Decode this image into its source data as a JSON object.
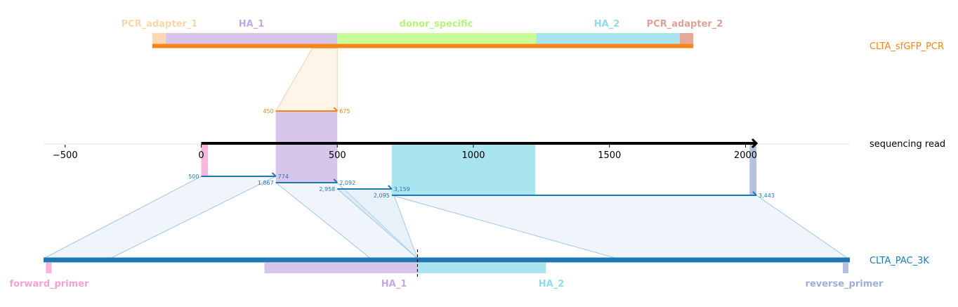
{
  "chart_data": {
    "type": "alignment-map",
    "colors": {
      "PCR_adapter_1": "#fcd9b3",
      "HA_1": "#d8c6ea",
      "donor_specific": "#c9fd98",
      "HA_2": "#a9e5ef",
      "PCR_adapter_2": "#e4a898",
      "forward_primer": "#f7b6de",
      "reverse_primer": "#b4c2de",
      "template_track": "#f58518",
      "plasmid_track": "#1f77b4",
      "read_axis": "#000000",
      "link_fill": "#dbe9f4",
      "link_stroke": "#9ecae1",
      "label_forward_primer": "#f7a1d2",
      "label_HA_1": "#c5a8e2",
      "label_donor_specific": "#b5f47a",
      "label_HA_2": "#8fdcea",
      "label_PCR_adapter_1": "#fdd5a8",
      "label_PCR_adapter_2": "#dca195",
      "label_reverse_primer": "#9bb0d4"
    },
    "tracks": {
      "top": {
        "name": "CLTA_sfGFP_PCR",
        "features": [
          {
            "name": "PCR_adapter_1",
            "start": -180,
            "end": -130
          },
          {
            "name": "HA_1",
            "start": -130,
            "end": 500
          },
          {
            "name": "donor_specific",
            "start": 500,
            "end": 1230
          },
          {
            "name": "HA_2",
            "start": 1230,
            "end": 1758
          },
          {
            "name": "PCR_adapter_2",
            "start": 1758,
            "end": 1808
          }
        ]
      },
      "read": {
        "name": "sequencing read",
        "xlim": [
          -580,
          2380
        ],
        "ticks": [
          "−500",
          "0",
          "500",
          "1000",
          "1500",
          "2000"
        ],
        "tick_values": [
          -500,
          0,
          500,
          1000,
          1500,
          2000
        ],
        "length": 2040
      },
      "bottom": {
        "name": "CLTA_PAC_3K",
        "cut_site": 1600,
        "features": [
          {
            "name": "forward_primer",
            "start": 10,
            "end": 35
          },
          {
            "name": "HA_1",
            "start": 945,
            "end": 1600
          },
          {
            "name": "HA_2",
            "start": 1600,
            "end": 2150
          },
          {
            "name": "reverse_primer",
            "start": 3420,
            "end": 3443
          }
        ]
      }
    },
    "read_highlights": [
      {
        "name": "forward_primer",
        "start": 0,
        "end": 25
      },
      {
        "name": "HA_1",
        "start": 274,
        "end": 500
      },
      {
        "name": "HA_2",
        "start": 700,
        "end": 1228
      },
      {
        "name": "reverse_primer",
        "start": 2015,
        "end": 2040
      }
    ],
    "alignments_top": [
      {
        "read_start": 274,
        "read_end": 500,
        "ref_start": "450",
        "ref_end": "675",
        "ref_start_val": 450,
        "ref_end_val": 675,
        "feat_start": 130,
        "feat_end": 500
      }
    ],
    "alignments_bottom": [
      {
        "read_start": 0,
        "read_end": 274,
        "ref_start": "500",
        "ref_end": "774",
        "ref_start_val": 500,
        "ref_end_val": 774,
        "row": 0,
        "label_side": "left"
      },
      {
        "read_start": 274,
        "read_end": 500,
        "ref_start": "1,867",
        "ref_end": "2,092",
        "ref_start_val": 1867,
        "ref_end_val": 2092,
        "row": 1,
        "label_side": "left"
      },
      {
        "read_start": 500,
        "read_end": 700,
        "ref_start": "2,958",
        "ref_end": "3,159",
        "ref_start_val": 2958,
        "ref_end_val": 3159,
        "row": 2,
        "label_side": "left"
      },
      {
        "read_start": 700,
        "read_end": 2040,
        "ref_start": "2,095",
        "ref_end": "3,443",
        "ref_start_val": 2095,
        "ref_end_val": 3443,
        "row": 3,
        "label_side": "left"
      }
    ]
  },
  "labels": {
    "top_track": "CLTA_sfGFP_PCR",
    "read_track": "sequencing read",
    "bottom_track": "CLTA_PAC_3K",
    "PCR_adapter_1": "PCR_adapter_1",
    "HA_1_top": "HA_1",
    "donor_specific": "donor_specific",
    "HA_2_top": "HA_2",
    "PCR_adapter_2": "PCR_adapter_2",
    "forward_primer": "forward_primer",
    "HA_1_bottom": "HA_1",
    "HA_2_bottom": "HA_2",
    "reverse_primer": "reverse_primer"
  }
}
